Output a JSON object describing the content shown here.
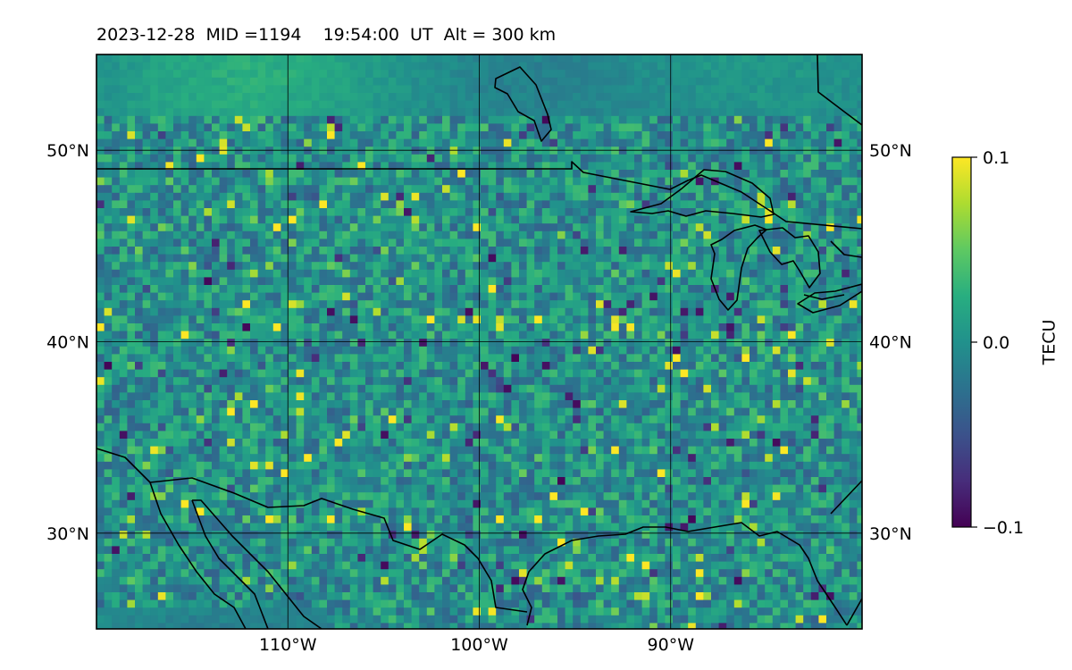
{
  "title": "2023-12-28  MID =1194    19:54:00  UT  Alt = 300 km",
  "map": {
    "lon_range": [
      -120,
      -80
    ],
    "lat_range": [
      25,
      55
    ],
    "lon_ticks": [
      {
        "value": -110,
        "label": "110°W"
      },
      {
        "value": -100,
        "label": "100°W"
      },
      {
        "value": -90,
        "label": "90°W"
      }
    ],
    "lat_ticks": [
      {
        "value": 30,
        "label": "30°N"
      },
      {
        "value": 40,
        "label": "40°N"
      },
      {
        "value": 50,
        "label": "50°N"
      }
    ],
    "gridlines": true,
    "coastlines": true,
    "colormap": "viridis"
  },
  "colorbar": {
    "label": "TECU",
    "range": [
      -0.1,
      0.1
    ],
    "ticks": [
      {
        "value": 0.1,
        "label": "0.1"
      },
      {
        "value": 0.0,
        "label": "0.0"
      },
      {
        "value": -0.1,
        "label": "−0.1"
      }
    ]
  }
}
